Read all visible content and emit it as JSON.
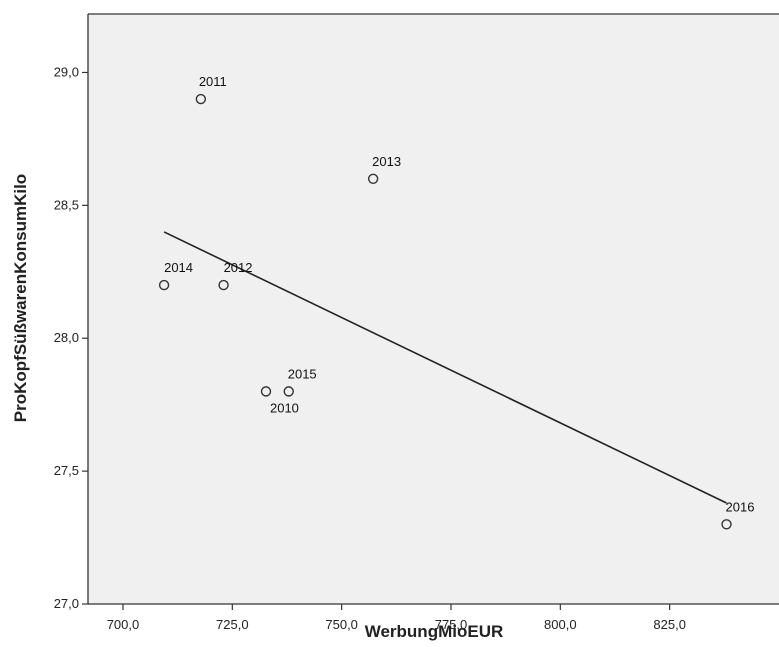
{
  "chart_data": {
    "type": "scatter",
    "xlabel": "WerbungMioEUR",
    "ylabel": "ProKopfSüßwarenKonsumKilo",
    "xlim": [
      692,
      850
    ],
    "ylim": [
      27.0,
      29.22
    ],
    "xticks": [
      700,
      725,
      750,
      775,
      800,
      825
    ],
    "xtick_labels": [
      "700,0",
      "725,0",
      "750,0",
      "775,0",
      "800,0",
      "825,0"
    ],
    "yticks": [
      27.0,
      27.5,
      28.0,
      28.5,
      29.0
    ],
    "ytick_labels": [
      "27,0",
      "27,5",
      "28,0",
      "28,5",
      "29,0"
    ],
    "grid": false,
    "legend": "none",
    "plot_background": "#f0f0f0",
    "marker_style": "open-circle",
    "points": [
      {
        "label": "2010",
        "x": 732.7,
        "y": 27.8
      },
      {
        "label": "2011",
        "x": 717.8,
        "y": 28.9
      },
      {
        "label": "2012",
        "x": 723.0,
        "y": 28.2
      },
      {
        "label": "2013",
        "x": 757.2,
        "y": 28.6
      },
      {
        "label": "2014",
        "x": 709.4,
        "y": 28.2
      },
      {
        "label": "2015",
        "x": 737.9,
        "y": 27.8
      },
      {
        "label": "2016",
        "x": 838.0,
        "y": 27.3
      }
    ],
    "fit_line": {
      "x": [
        709.4,
        838.0
      ],
      "y": [
        28.4,
        27.38
      ]
    },
    "colors": {
      "marker": "#333333",
      "line": "#222222",
      "axis": "#333333"
    }
  }
}
